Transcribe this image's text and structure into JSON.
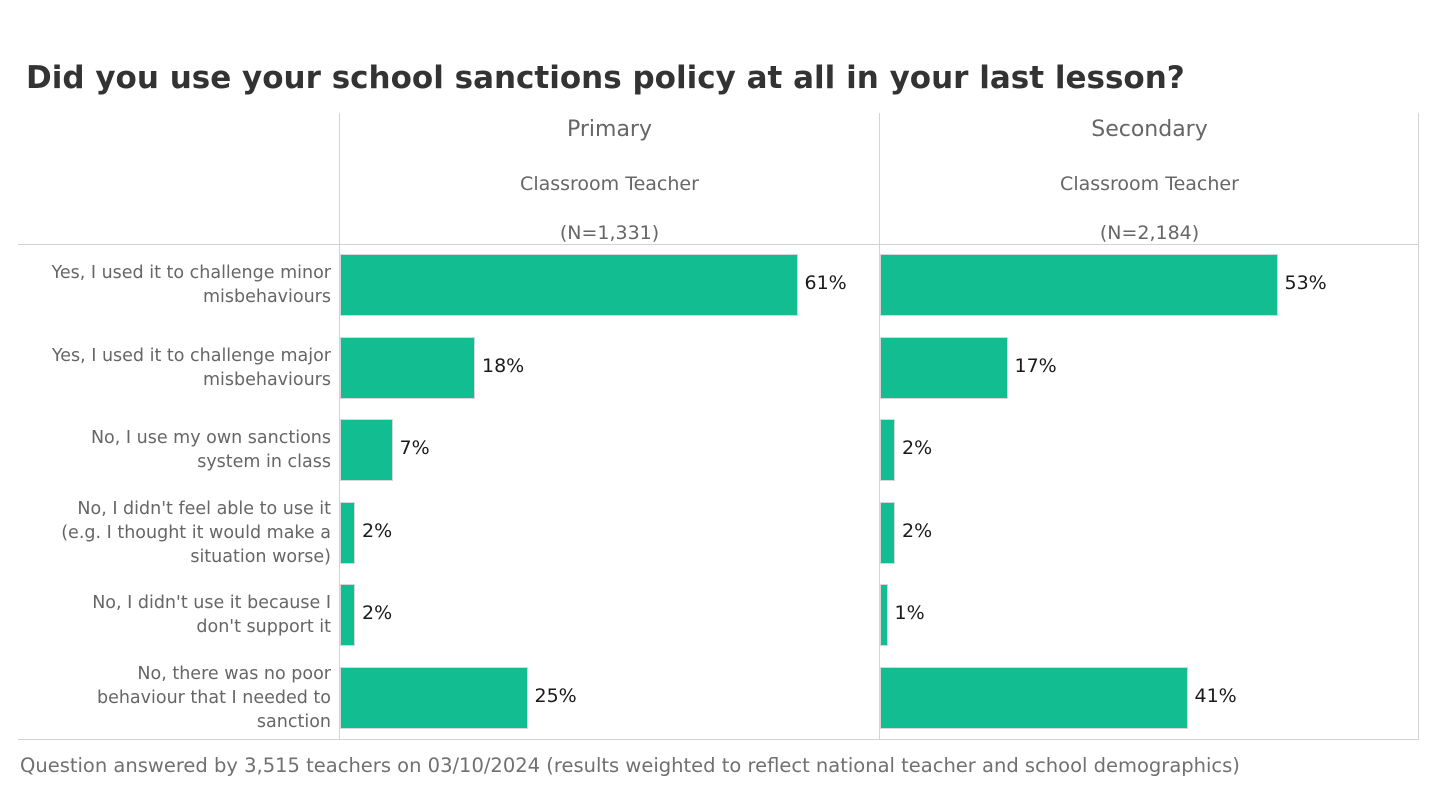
{
  "chart_data": {
    "type": "bar",
    "orientation": "horizontal",
    "title": "Did you use your school sanctions policy at all in your last lesson?",
    "categories": [
      "Yes, I used it to challenge minor misbehaviours",
      "Yes, I used it to challenge major misbehaviours",
      "No, I use my own sanctions system in class",
      "No, I didn't feel able to use it (e.g. I thought it would make a situation worse)",
      "No, I didn't use it because I don't support it",
      "No, there was no poor behaviour that I needed to sanction"
    ],
    "category_lines": [
      [
        "Yes, I used it to challenge minor",
        "misbehaviours"
      ],
      [
        "Yes, I used it to challenge major",
        "misbehaviours"
      ],
      [
        "No, I use my own sanctions",
        "system in class"
      ],
      [
        "No, I didn't feel able to use it",
        "(e.g. I thought it would make a",
        "situation worse)"
      ],
      [
        "No, I didn't use it because I",
        "don't support it"
      ],
      [
        "No, there was no poor",
        "behaviour that I needed to",
        "sanction"
      ]
    ],
    "panels": [
      {
        "name": "Primary",
        "role": "Classroom Teacher",
        "n_label": "(N=1,331)",
        "values": [
          61,
          18,
          7,
          2,
          2,
          25
        ],
        "labels": [
          "61%",
          "18%",
          "7%",
          "2%",
          "2%",
          "25%"
        ]
      },
      {
        "name": "Secondary",
        "role": "Classroom Teacher",
        "n_label": "(N=2,184)",
        "values": [
          53,
          17,
          2,
          2,
          1,
          41
        ],
        "labels": [
          "53%",
          "17%",
          "2%",
          "2%",
          "1%",
          "41%"
        ]
      }
    ],
    "xlim": [
      0,
      72
    ],
    "unit": "%",
    "bar_color": "#12be91",
    "grid": false,
    "legend": "none"
  },
  "footer": "Question answered by 3,515 teachers on 03/10/2024 (results weighted to reflect national teacher and school demographics)"
}
